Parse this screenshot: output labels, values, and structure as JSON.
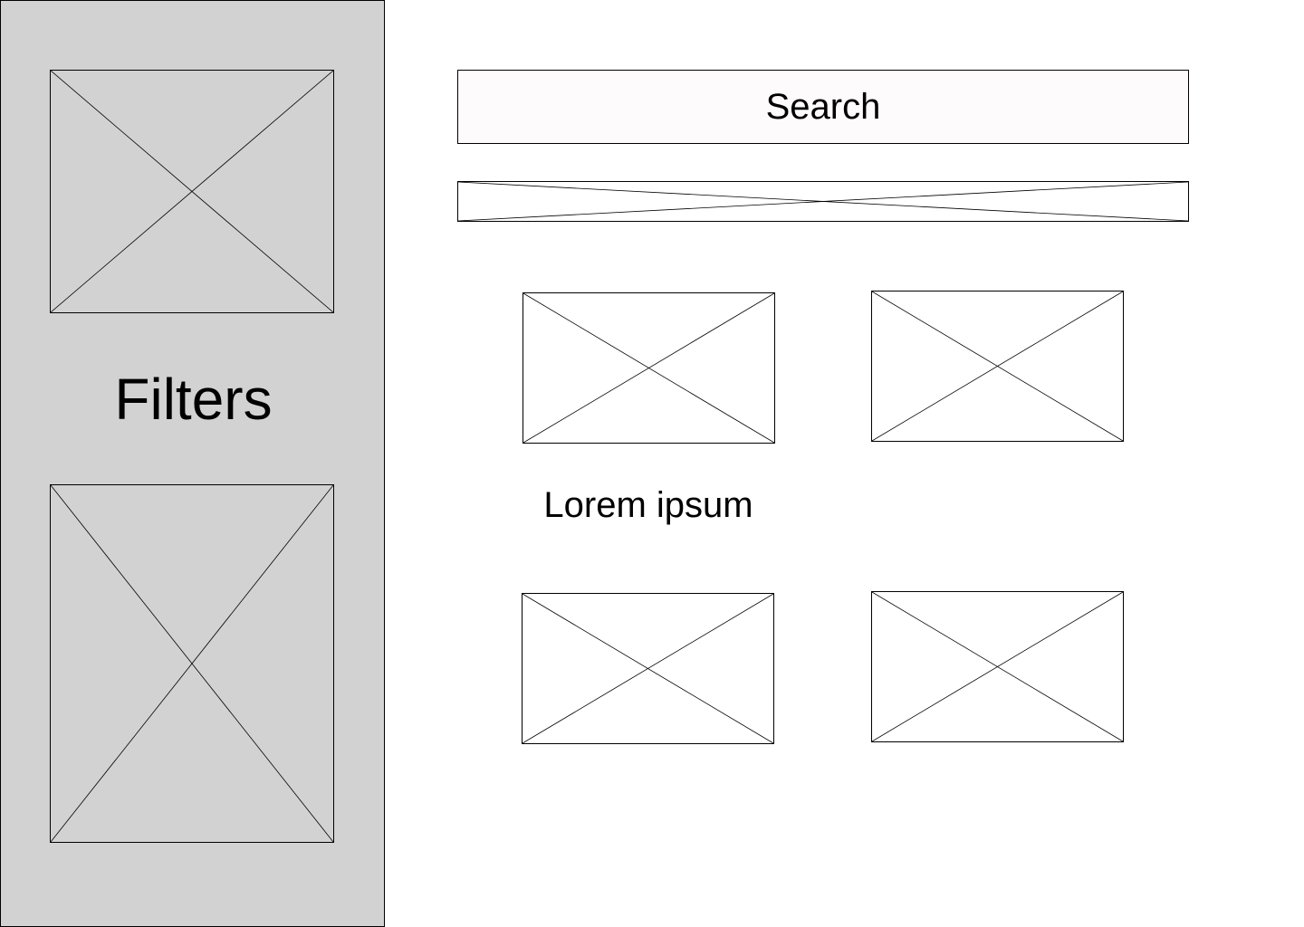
{
  "sidebar": {
    "title": "Filters",
    "background_color": "#d2d2d2",
    "placeholders": [
      {
        "name": "image-placeholder-icon"
      },
      {
        "name": "image-placeholder-icon"
      }
    ]
  },
  "main": {
    "search": {
      "placeholder": "Search",
      "value": "",
      "background_color": "#fdfbfc"
    },
    "banner": {
      "name": "image-placeholder-icon"
    },
    "cards": [
      {
        "name": "image-placeholder-icon",
        "caption": "Lorem ipsum"
      },
      {
        "name": "image-placeholder-icon",
        "caption": ""
      },
      {
        "name": "image-placeholder-icon",
        "caption": ""
      },
      {
        "name": "image-placeholder-icon",
        "caption": ""
      }
    ]
  }
}
